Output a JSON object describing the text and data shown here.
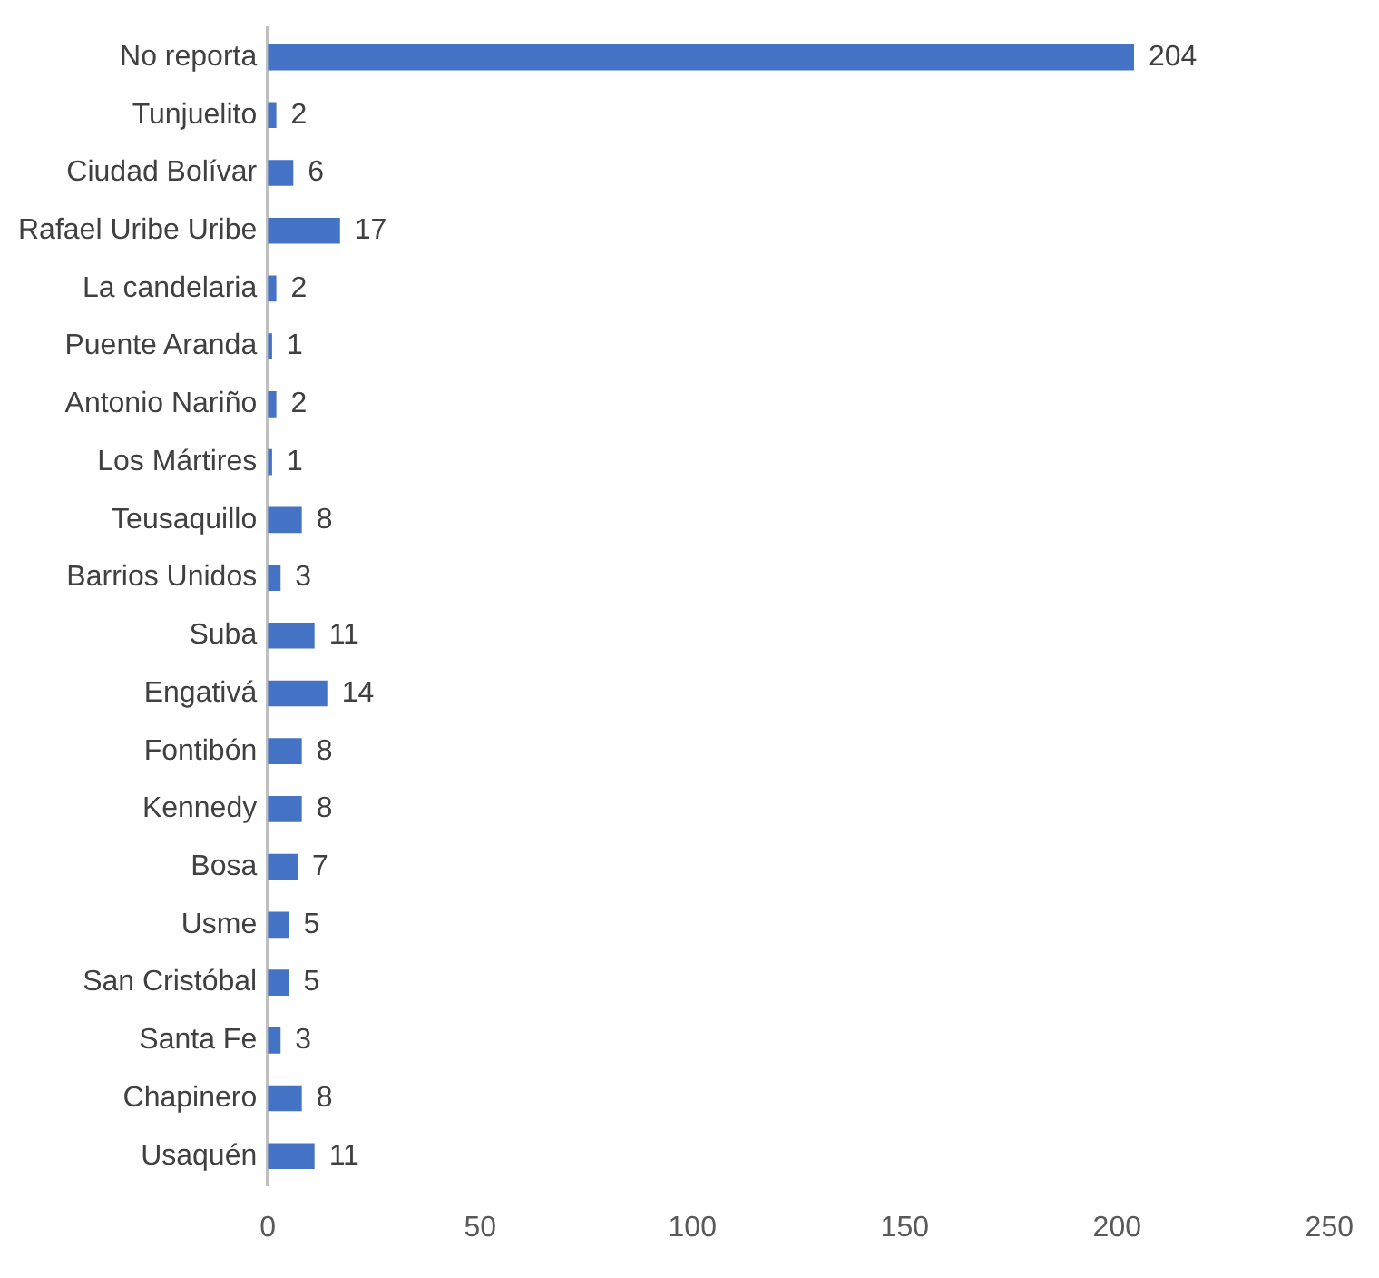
{
  "chart_data": {
    "type": "bar",
    "orientation": "horizontal",
    "categories": [
      "No reporta",
      "Tunjuelito",
      "Ciudad Bolívar",
      "Rafael Uribe Uribe",
      "La candelaria",
      "Puente Aranda",
      "Antonio Nariño",
      "Los Mártires",
      "Teusaquillo",
      "Barrios Unidos",
      "Suba",
      "Engativá",
      "Fontibón",
      "Kennedy",
      "Bosa",
      "Usme",
      "San Cristóbal",
      "Santa Fe",
      "Chapinero",
      "Usaquén"
    ],
    "values": [
      204,
      2,
      6,
      17,
      2,
      1,
      2,
      1,
      8,
      3,
      11,
      14,
      8,
      8,
      7,
      5,
      5,
      3,
      8,
      11
    ],
    "color": "#4472c4",
    "xlim": [
      0,
      250
    ],
    "xticks": [
      0,
      50,
      100,
      150,
      200,
      250
    ],
    "grid": false,
    "data_labels": true,
    "legend": false
  }
}
